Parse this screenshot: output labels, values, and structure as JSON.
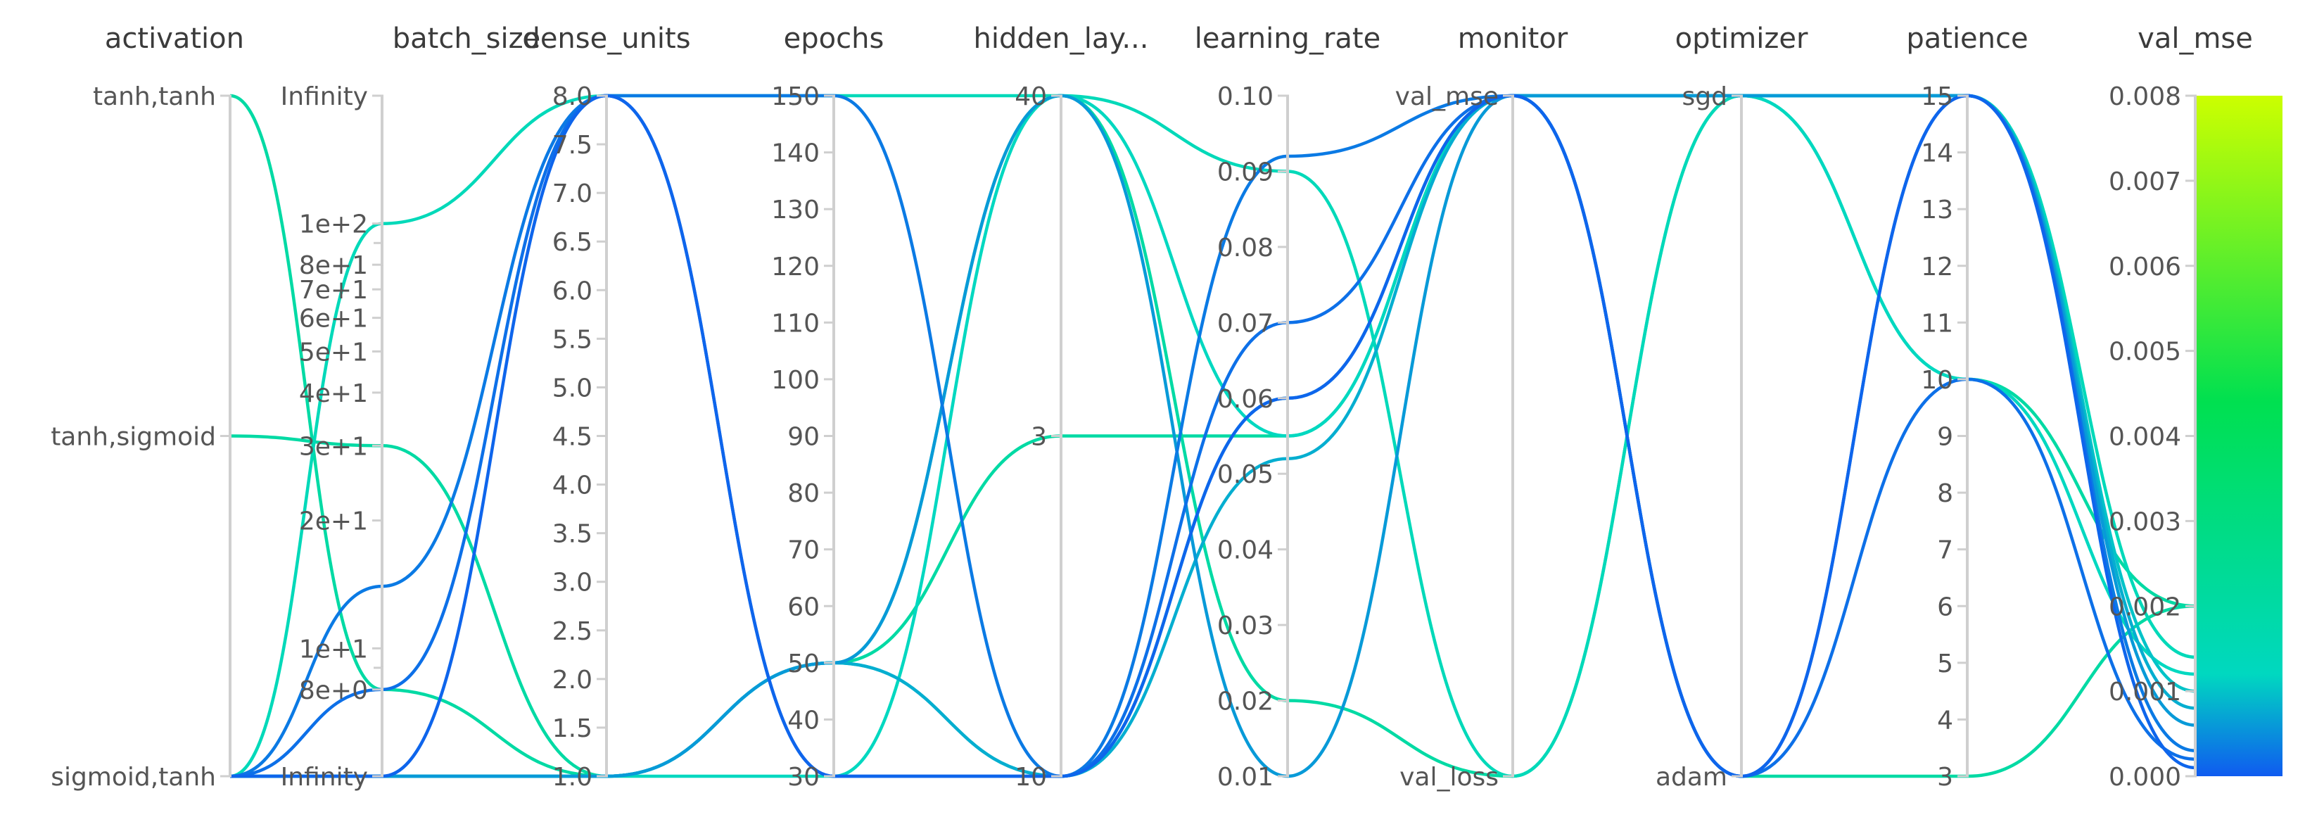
{
  "chart_data": {
    "type": "parallel_coordinates",
    "color_metric": "val_mse",
    "color_scale": {
      "min": 0.0,
      "max": 0.008,
      "stops": [
        "#0f5bf0",
        "#00d8c0",
        "#00e050",
        "#ccff00"
      ],
      "ticks": [
        "0.000",
        "0.001",
        "0.002",
        "0.003",
        "0.004",
        "0.005",
        "0.006",
        "0.007",
        "0.008"
      ]
    },
    "axes": [
      {
        "key": "activation",
        "title": "activation",
        "kind": "categorical",
        "categories": [
          "tanh,tanh",
          "tanh,sigmoid",
          "sigmoid,tanh"
        ],
        "label_side": "left"
      },
      {
        "key": "batch_size",
        "title": "batch_size",
        "kind": "log",
        "range": [
          5,
          200
        ],
        "tick_labels": [
          {
            "v": 200,
            "t": "Infinity"
          },
          {
            "v": 100,
            "t": "1e+2"
          },
          {
            "v": 80,
            "t": "8e+1"
          },
          {
            "v": 70,
            "t": "7e+1"
          },
          {
            "v": 60,
            "t": "6e+1"
          },
          {
            "v": 50,
            "t": "5e+1"
          },
          {
            "v": 40,
            "t": "4e+1"
          },
          {
            "v": 30,
            "t": "3e+1"
          },
          {
            "v": 20,
            "t": "2e+1"
          },
          {
            "v": 10,
            "t": "1e+1"
          },
          {
            "v": 8,
            "t": "8e+0"
          },
          {
            "v": 5,
            "t": "Infinity"
          }
        ],
        "minor_ticks": [
          90,
          9
        ]
      },
      {
        "key": "dense_units",
        "title": "dense_units",
        "kind": "linear",
        "range": [
          1.0,
          8.0
        ],
        "tick_labels": [
          {
            "v": 8.0,
            "t": "8.0"
          },
          {
            "v": 7.5,
            "t": "7.5"
          },
          {
            "v": 7.0,
            "t": "7.0"
          },
          {
            "v": 6.5,
            "t": "6.5"
          },
          {
            "v": 6.0,
            "t": "6.0"
          },
          {
            "v": 5.5,
            "t": "5.5"
          },
          {
            "v": 5.0,
            "t": "5.0"
          },
          {
            "v": 4.5,
            "t": "4.5"
          },
          {
            "v": 4.0,
            "t": "4.0"
          },
          {
            "v": 3.5,
            "t": "3.5"
          },
          {
            "v": 3.0,
            "t": "3.0"
          },
          {
            "v": 2.5,
            "t": "2.5"
          },
          {
            "v": 2.0,
            "t": "2.0"
          },
          {
            "v": 1.5,
            "t": "1.5"
          },
          {
            "v": 1.0,
            "t": "1.0"
          }
        ]
      },
      {
        "key": "epochs",
        "title": "epochs",
        "kind": "linear",
        "range": [
          30,
          150
        ],
        "tick_labels": [
          {
            "v": 150,
            "t": "150"
          },
          {
            "v": 140,
            "t": "140"
          },
          {
            "v": 130,
            "t": "130"
          },
          {
            "v": 120,
            "t": "120"
          },
          {
            "v": 110,
            "t": "110"
          },
          {
            "v": 100,
            "t": "100"
          },
          {
            "v": 90,
            "t": "90"
          },
          {
            "v": 80,
            "t": "80"
          },
          {
            "v": 70,
            "t": "70"
          },
          {
            "v": 60,
            "t": "60"
          },
          {
            "v": 50,
            "t": "50"
          },
          {
            "v": 40,
            "t": "40"
          },
          {
            "v": 30,
            "t": "30"
          }
        ]
      },
      {
        "key": "hidden_layers",
        "title": "hidden_lay...",
        "kind": "categorical",
        "categories": [
          "40",
          "3",
          "10"
        ]
      },
      {
        "key": "learning_rate",
        "title": "learning_rate",
        "kind": "linear",
        "range": [
          0.01,
          0.1
        ],
        "tick_labels": [
          {
            "v": 0.1,
            "t": "0.10"
          },
          {
            "v": 0.09,
            "t": "0.09"
          },
          {
            "v": 0.08,
            "t": "0.08"
          },
          {
            "v": 0.07,
            "t": "0.07"
          },
          {
            "v": 0.06,
            "t": "0.06"
          },
          {
            "v": 0.05,
            "t": "0.05"
          },
          {
            "v": 0.04,
            "t": "0.04"
          },
          {
            "v": 0.03,
            "t": "0.03"
          },
          {
            "v": 0.02,
            "t": "0.02"
          },
          {
            "v": 0.01,
            "t": "0.01"
          }
        ]
      },
      {
        "key": "monitor",
        "title": "monitor",
        "kind": "categorical",
        "categories": [
          "val_mse",
          "val_loss"
        ]
      },
      {
        "key": "optimizer",
        "title": "optimizer",
        "kind": "categorical",
        "categories": [
          "sgd",
          "adam"
        ]
      },
      {
        "key": "patience",
        "title": "patience",
        "kind": "linear",
        "range": [
          3,
          15
        ],
        "tick_labels": [
          {
            "v": 15,
            "t": "15"
          },
          {
            "v": 14,
            "t": "14"
          },
          {
            "v": 13,
            "t": "13"
          },
          {
            "v": 12,
            "t": "12"
          },
          {
            "v": 11,
            "t": "11"
          },
          {
            "v": 10,
            "t": "10"
          },
          {
            "v": 9,
            "t": "9"
          },
          {
            "v": 8,
            "t": "8"
          },
          {
            "v": 7,
            "t": "7"
          },
          {
            "v": 6,
            "t": "6"
          },
          {
            "v": 5,
            "t": "5"
          },
          {
            "v": 4,
            "t": "4"
          },
          {
            "v": 3,
            "t": "3"
          }
        ]
      },
      {
        "key": "val_mse",
        "title": "val_mse",
        "kind": "linear",
        "range": [
          0.0,
          0.008
        ],
        "tick_labels": [
          {
            "v": 0.008,
            "t": "0.008"
          },
          {
            "v": 0.007,
            "t": "0.007"
          },
          {
            "v": 0.006,
            "t": "0.006"
          },
          {
            "v": 0.005,
            "t": "0.005"
          },
          {
            "v": 0.004,
            "t": "0.004"
          },
          {
            "v": 0.003,
            "t": "0.003"
          },
          {
            "v": 0.002,
            "t": "0.002"
          },
          {
            "v": 0.001,
            "t": "0.001"
          },
          {
            "v": 0.0,
            "t": "0.000"
          }
        ]
      }
    ],
    "runs": [
      {
        "activation": "tanh,tanh",
        "batch_size": 8,
        "dense_units": 1.0,
        "epochs": 50,
        "hidden_layers": "40",
        "learning_rate": 0.02,
        "monitor": "val_loss",
        "optimizer": "sgd",
        "patience": 10,
        "val_mse": 0.002
      },
      {
        "activation": "tanh,sigmoid",
        "batch_size": 30,
        "dense_units": 1.0,
        "epochs": 50,
        "hidden_layers": "3",
        "learning_rate": 0.055,
        "monitor": "val_mse",
        "optimizer": "adam",
        "patience": 3,
        "val_mse": 0.002
      },
      {
        "activation": "sigmoid,tanh",
        "batch_size": 100,
        "dense_units": 8.0,
        "epochs": 150,
        "hidden_layers": "40",
        "learning_rate": 0.09,
        "monitor": "val_loss",
        "optimizer": "sgd",
        "patience": 15,
        "val_mse": 0.0014
      },
      {
        "activation": "sigmoid,tanh",
        "batch_size": 5,
        "dense_units": 1.0,
        "epochs": 30,
        "hidden_layers": "40",
        "learning_rate": 0.055,
        "monitor": "val_mse",
        "optimizer": "sgd",
        "patience": 10,
        "val_mse": 0.0012
      },
      {
        "activation": "sigmoid,tanh",
        "batch_size": 5,
        "dense_units": 1.0,
        "epochs": 50,
        "hidden_layers": "10",
        "learning_rate": 0.06,
        "monitor": "val_mse",
        "optimizer": "sgd",
        "patience": 15,
        "val_mse": 0.001
      },
      {
        "activation": "sigmoid,tanh",
        "batch_size": 5,
        "dense_units": 1.0,
        "epochs": 50,
        "hidden_layers": "10",
        "learning_rate": 0.052,
        "monitor": "val_mse",
        "optimizer": "sgd",
        "patience": 15,
        "val_mse": 0.0008
      },
      {
        "activation": "sigmoid,tanh",
        "batch_size": 5,
        "dense_units": 1.0,
        "epochs": 50,
        "hidden_layers": "40",
        "learning_rate": 0.01,
        "monitor": "val_mse",
        "optimizer": "sgd",
        "patience": 15,
        "val_mse": 0.0006
      },
      {
        "activation": "sigmoid,tanh",
        "batch_size": 14,
        "dense_units": 8.0,
        "epochs": 150,
        "hidden_layers": "10",
        "learning_rate": 0.092,
        "monitor": "val_mse",
        "optimizer": "adam",
        "patience": 15,
        "val_mse": 0.0003
      },
      {
        "activation": "sigmoid,tanh",
        "batch_size": 8,
        "dense_units": 8.0,
        "epochs": 30,
        "hidden_layers": "10",
        "learning_rate": 0.07,
        "monitor": "val_mse",
        "optimizer": "adam",
        "patience": 10,
        "val_mse": 0.0002
      },
      {
        "activation": "sigmoid,tanh",
        "batch_size": 5,
        "dense_units": 8.0,
        "epochs": 30,
        "hidden_layers": "10",
        "learning_rate": 0.06,
        "monitor": "val_mse",
        "optimizer": "adam",
        "patience": 15,
        "val_mse": 0.0001
      }
    ]
  }
}
